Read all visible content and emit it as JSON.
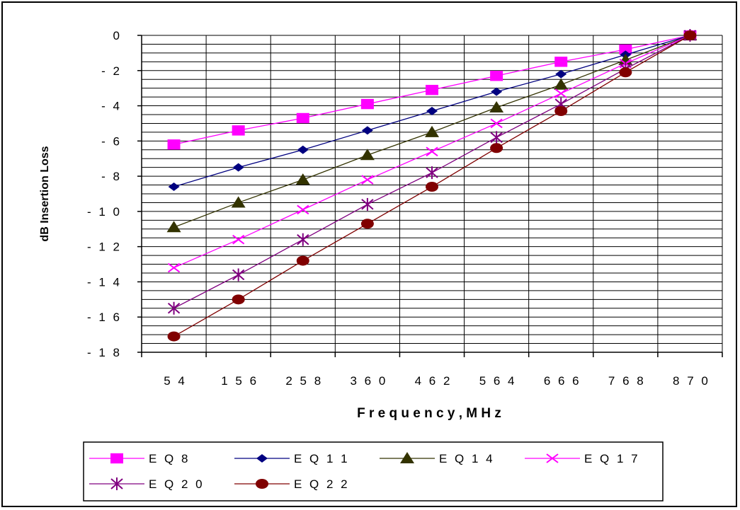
{
  "chart_data": {
    "type": "line",
    "title": "",
    "xlabel": "Frequency, MHz",
    "ylabel": "dB Insertion Loss",
    "x": [
      54,
      156,
      258,
      360,
      462,
      564,
      666,
      768,
      870
    ],
    "x_tick_labels": [
      "5 4",
      "1 5 6",
      "2 5 8",
      "3 6 0",
      "4 6 2",
      "5 6 4",
      "6 6 6",
      "7 6 8",
      "8 7 0"
    ],
    "xlabel_display": "F r e q u e n c y ,  M H z",
    "ylim": [
      -18,
      0
    ],
    "y_ticks": [
      0,
      -2,
      -4,
      -6,
      -8,
      -10,
      -12,
      -14,
      -16,
      -18
    ],
    "y_tick_labels": [
      "0",
      "- 2",
      "- 4",
      "- 6",
      "- 8",
      "- 1 0",
      "- 1 2",
      "- 1 4",
      "- 1 6",
      "- 1 8"
    ],
    "grid": true,
    "grid_step": 0.5,
    "legend_position": "bottom",
    "series": [
      {
        "name": "EQ 8",
        "legend_label": "E Q   8",
        "color": "#FF00FF",
        "marker": "square",
        "values": [
          -6.2,
          -5.4,
          -4.7,
          -3.9,
          -3.1,
          -2.3,
          -1.5,
          -0.8,
          0
        ]
      },
      {
        "name": "EQ 11",
        "legend_label": "E Q 1 1",
        "color": "#000080",
        "marker": "diamond",
        "values": [
          -8.6,
          -7.5,
          -6.5,
          -5.4,
          -4.3,
          -3.2,
          -2.2,
          -1.1,
          0
        ]
      },
      {
        "name": "EQ 14",
        "legend_label": "E Q 1 4",
        "color": "#333300",
        "marker": "triangle",
        "values": [
          -10.9,
          -9.5,
          -8.2,
          -6.8,
          -5.5,
          -4.1,
          -2.8,
          -1.4,
          0
        ]
      },
      {
        "name": "EQ 17",
        "legend_label": "E Q 1 7",
        "color": "#FF00FF",
        "marker": "x",
        "values": [
          -13.2,
          -11.6,
          -9.9,
          -8.2,
          -6.6,
          -5.0,
          -3.3,
          -1.6,
          0
        ]
      },
      {
        "name": "EQ 20",
        "legend_label": "E Q 2 0",
        "color": "#800080",
        "marker": "star",
        "values": [
          -15.5,
          -13.6,
          -11.6,
          -9.6,
          -7.8,
          -5.8,
          -3.9,
          -1.9,
          0
        ]
      },
      {
        "name": "EQ 22",
        "legend_label": "E Q 2 2",
        "color": "#800000",
        "marker": "circle",
        "values": [
          -17.1,
          -15.0,
          -12.8,
          -10.7,
          -8.6,
          -6.4,
          -4.3,
          -2.1,
          0
        ]
      }
    ]
  }
}
